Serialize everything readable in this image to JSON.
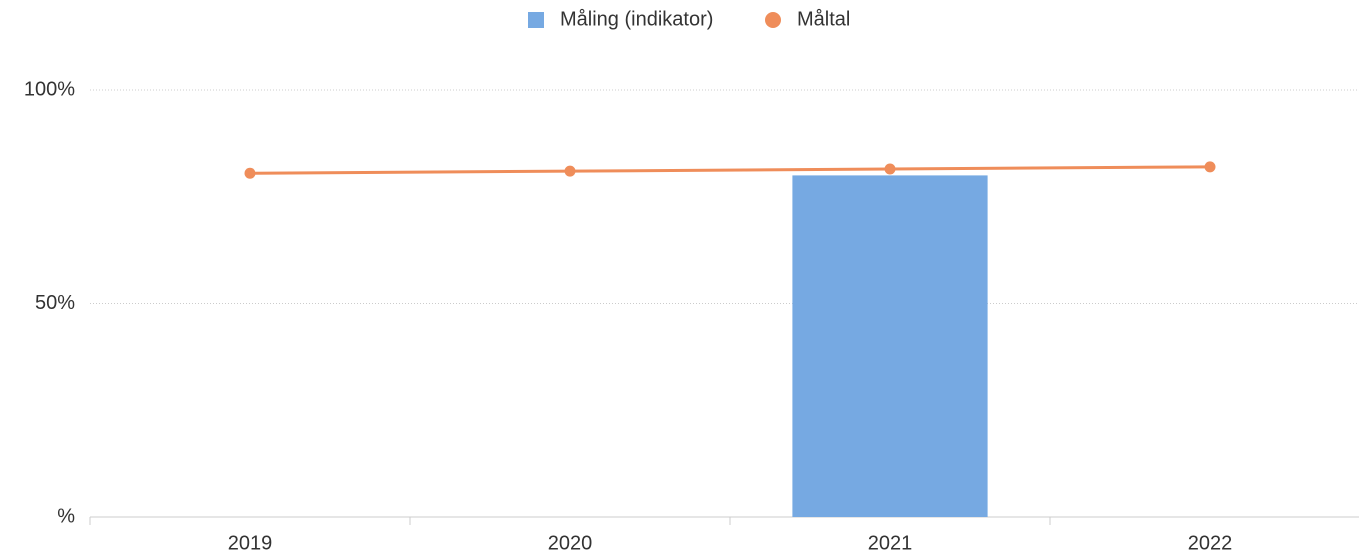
{
  "chart_data": {
    "type": "combo",
    "categories": [
      "2019",
      "2020",
      "2021",
      "2022"
    ],
    "series": [
      {
        "name": "Måling (indikator)",
        "type": "bar",
        "color": "#76a9e2",
        "values": [
          null,
          null,
          80,
          null
        ]
      },
      {
        "name": "Måltal",
        "type": "line",
        "color": "#ef8d5a",
        "values": [
          80.5,
          81,
          81.5,
          82
        ]
      }
    ],
    "ylim": [
      0,
      100
    ],
    "yticks": [
      {
        "value": 0,
        "label": "%"
      },
      {
        "value": 50,
        "label": "50%"
      },
      {
        "value": 100,
        "label": "100%"
      }
    ],
    "grid": true,
    "legend": "top"
  }
}
